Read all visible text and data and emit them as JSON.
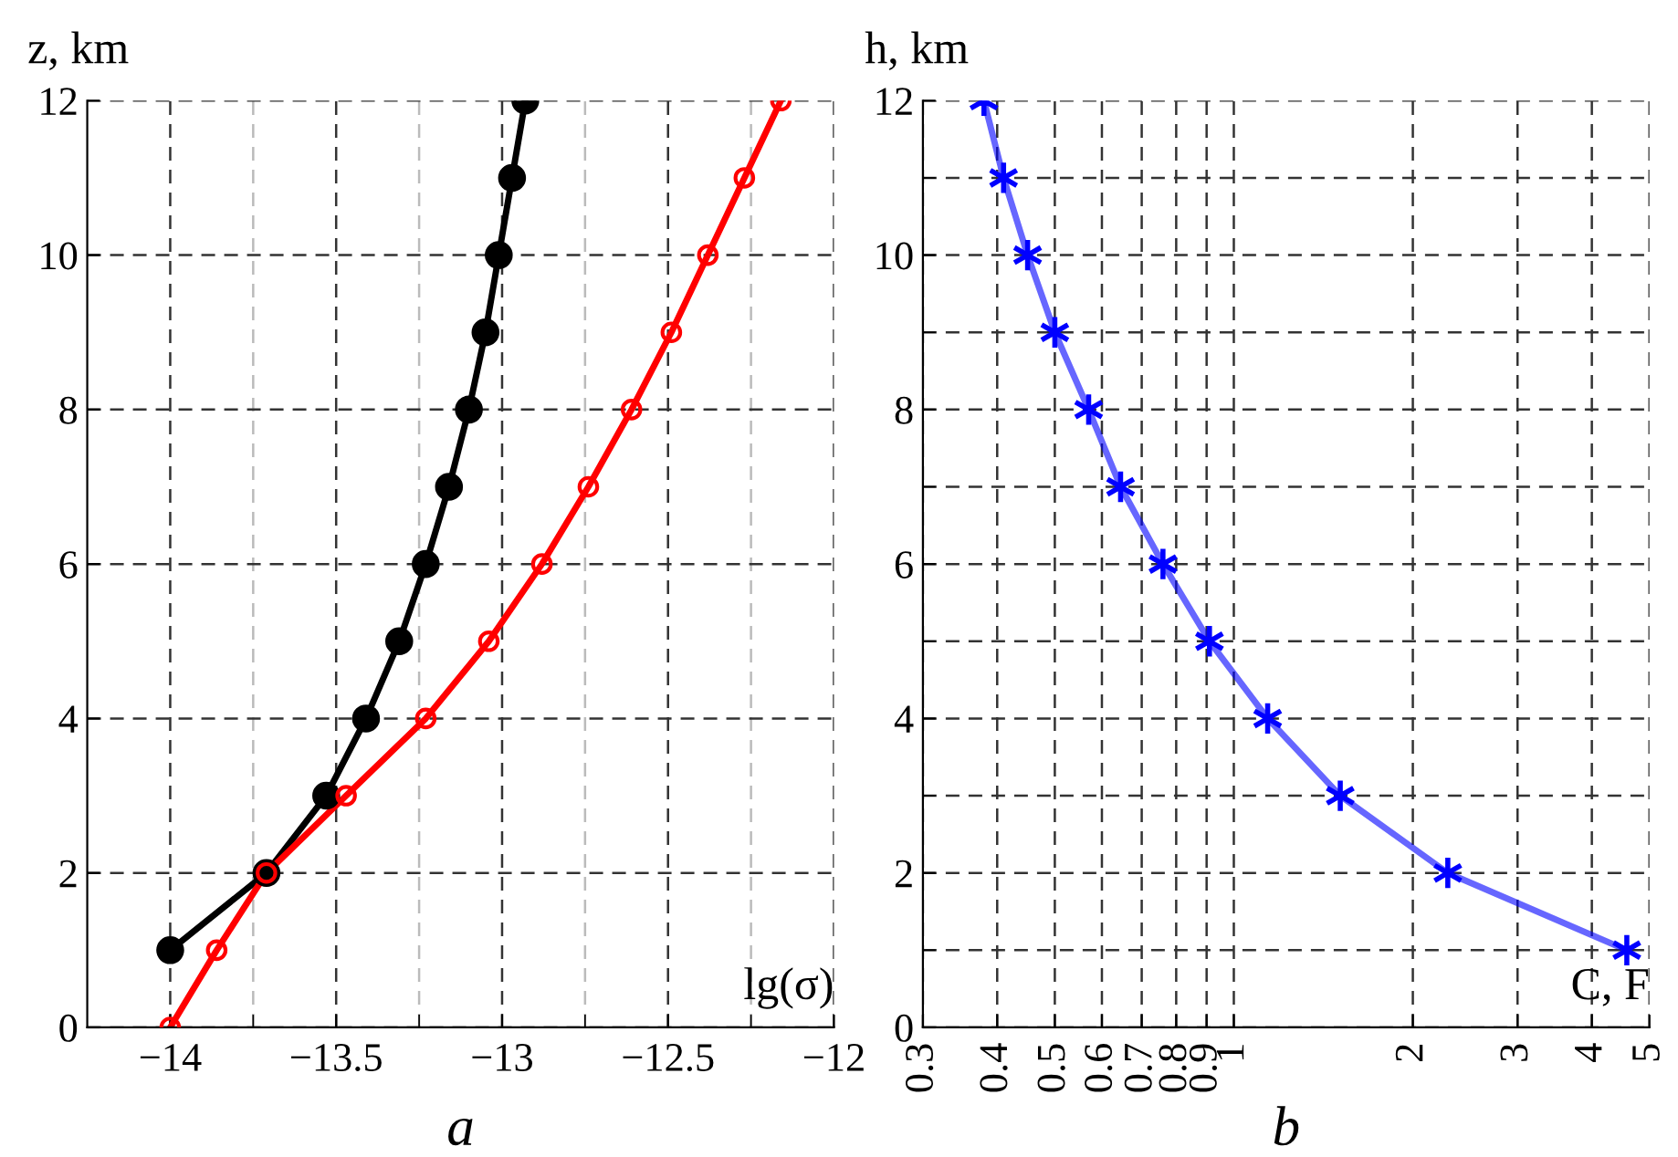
{
  "chart_data": [
    {
      "type": "line",
      "ylabel": "z, km",
      "xlabel": "lg(σ)",
      "annotations": [
        "a"
      ],
      "line_style": "solid",
      "grid": true,
      "series": [
        {
          "color": "#000000",
          "marker": "circle",
          "x": [
            -14.0,
            -13.71,
            -13.53,
            -13.41,
            -13.31,
            -13.23,
            -13.16,
            -13.1,
            -13.05,
            -13.01,
            -12.97,
            -12.93
          ],
          "values": [
            1,
            2,
            3,
            4,
            5,
            6,
            7,
            8,
            9,
            10,
            11,
            12
          ]
        },
        {
          "color": "#ff0000",
          "marker": "circle",
          "x": [
            -14.0,
            -13.86,
            -13.71,
            -13.47,
            -13.23,
            -13.04,
            -12.88,
            -12.74,
            -12.61,
            -12.49,
            -12.38,
            -12.27,
            -12.16
          ],
          "values": [
            0,
            1,
            2,
            3,
            4,
            5,
            6,
            7,
            8,
            9,
            10,
            11,
            12
          ]
        }
      ],
      "xlim": [
        -14.25,
        -12
      ],
      "ylim": [
        0,
        12
      ],
      "xticks": [
        {
          "value": -14,
          "label": "−14"
        },
        {
          "value": -13.75,
          "label": null
        },
        {
          "value": -13.5,
          "label": "−13.5"
        },
        {
          "value": -13.25,
          "label": null
        },
        {
          "value": -13,
          "label": "−13"
        },
        {
          "value": -12.75,
          "label": null
        },
        {
          "value": -12.5,
          "label": "−12.5"
        },
        {
          "value": -12.25,
          "label": null
        },
        {
          "value": -12,
          "label": "−12"
        }
      ],
      "yticks": [
        0,
        2,
        4,
        6,
        8,
        10,
        12
      ]
    },
    {
      "type": "line",
      "ylabel": "h, km",
      "xlabel": "C, F",
      "annotations": [
        "b"
      ],
      "line_style": "solid",
      "grid": true,
      "log": "x",
      "series": [
        {
          "color": "#0000ff",
          "marker": "cross",
          "x": [
            0.38,
            0.41,
            0.45,
            0.5,
            0.57,
            0.645,
            0.76,
            0.91,
            1.14,
            1.51,
            2.29,
            4.58
          ],
          "values": [
            12,
            11,
            10,
            9,
            8,
            7,
            6,
            5,
            4,
            3,
            2,
            1
          ]
        }
      ],
      "xlim": [
        0.3,
        5
      ],
      "ylim": [
        0,
        12
      ],
      "xticks": [
        0.3,
        0.4,
        0.5,
        0.6,
        0.7,
        0.8,
        0.9,
        1,
        2,
        3,
        4,
        5
      ],
      "yticks": [
        0,
        {
          "value": 1,
          "label": null
        },
        2,
        {
          "value": 3,
          "label": null
        },
        4,
        {
          "value": 5,
          "label": null
        },
        6,
        {
          "value": 7,
          "label": null
        },
        8,
        {
          "value": 9,
          "label": null
        },
        10,
        {
          "value": 11,
          "label": null
        },
        12
      ]
    }
  ]
}
